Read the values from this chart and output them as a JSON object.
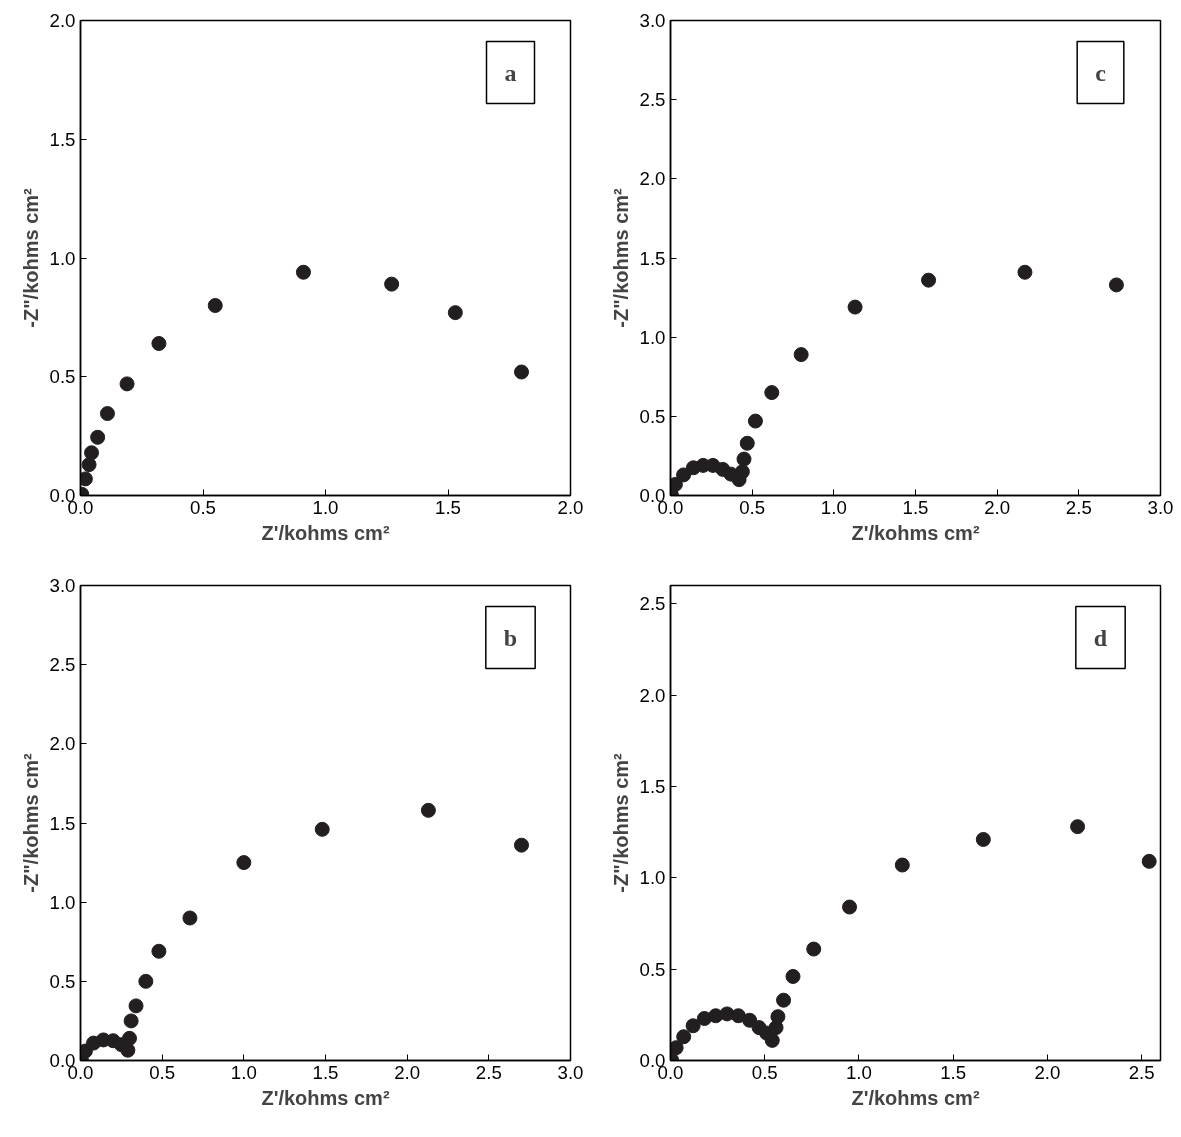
{
  "chart_data": [
    {
      "type": "scatter",
      "xlabel": "Z'/kohms cm²",
      "ylabel": "-Z\"/kohms cm²",
      "annotations": [
        "a"
      ],
      "marker": "circle",
      "grid": false,
      "xlim": [
        0,
        2.0
      ],
      "ylim": [
        0,
        2.0
      ],
      "xticks": [
        {
          "value": 0,
          "label": "0.0"
        },
        0.5,
        {
          "value": 1,
          "label": "1.0"
        },
        1.5,
        {
          "value": 2,
          "label": "2.0"
        }
      ],
      "yticks": [
        {
          "value": 0,
          "label": "0.0"
        },
        0.5,
        {
          "value": 1,
          "label": "1.0"
        },
        1.5,
        {
          "value": 2,
          "label": "2.0"
        }
      ],
      "series": [
        {
          "color": "#231f20",
          "x": [
            0.005,
            0.02,
            0.035,
            0.045,
            0.07,
            0.11,
            0.19,
            0.32,
            0.55,
            0.91,
            1.27,
            1.53,
            1.8
          ],
          "values": [
            0.005,
            0.07,
            0.13,
            0.18,
            0.245,
            0.345,
            0.47,
            0.64,
            0.8,
            0.94,
            0.89,
            0.77,
            0.52
          ]
        }
      ]
    },
    {
      "type": "scatter",
      "xlabel": "Z'/kohms cm²",
      "ylabel": "-Z\"/kohms cm²",
      "annotations": [
        "c"
      ],
      "marker": "circle",
      "grid": false,
      "xlim": [
        0,
        3.0
      ],
      "ylim": [
        0,
        3.0
      ],
      "xticks": [
        {
          "value": 0,
          "label": "0.0"
        },
        0.5,
        {
          "value": 1,
          "label": "1.0"
        },
        1.5,
        {
          "value": 2,
          "label": "2.0"
        },
        2.5,
        {
          "value": 3,
          "label": "3.0"
        }
      ],
      "yticks": [
        {
          "value": 0,
          "label": "0.0"
        },
        0.5,
        {
          "value": 1,
          "label": "1.0"
        },
        1.5,
        {
          "value": 2,
          "label": "2.0"
        },
        2.5,
        {
          "value": 3,
          "label": "3.0"
        }
      ],
      "series": [
        {
          "color": "#231f20",
          "x": [
            0.005,
            0.03,
            0.08,
            0.14,
            0.2,
            0.26,
            0.32,
            0.37,
            0.42,
            0.44,
            0.45,
            0.47,
            0.52,
            0.62,
            0.8,
            1.13,
            1.58,
            2.17,
            2.73
          ],
          "values": [
            0.005,
            0.07,
            0.13,
            0.175,
            0.19,
            0.19,
            0.165,
            0.135,
            0.1,
            0.15,
            0.23,
            0.33,
            0.47,
            0.65,
            0.89,
            1.19,
            1.36,
            1.41,
            1.33
          ]
        }
      ]
    },
    {
      "type": "scatter",
      "xlabel": "Z'/kohms cm²",
      "ylabel": "-Z\"/kohms cm²",
      "annotations": [
        "b"
      ],
      "marker": "circle",
      "grid": false,
      "xlim": [
        0,
        3.0
      ],
      "ylim": [
        0,
        3.0
      ],
      "xticks": [
        {
          "value": 0,
          "label": "0.0"
        },
        0.5,
        {
          "value": 1,
          "label": "1.0"
        },
        1.5,
        {
          "value": 2,
          "label": "2.0"
        },
        2.5,
        {
          "value": 3,
          "label": "3.0"
        }
      ],
      "yticks": [
        {
          "value": 0,
          "label": "0.0"
        },
        0.5,
        {
          "value": 1,
          "label": "1.0"
        },
        1.5,
        {
          "value": 2,
          "label": "2.0"
        },
        2.5,
        {
          "value": 3,
          "label": "3.0"
        }
      ],
      "series": [
        {
          "color": "#231f20",
          "x": [
            0.005,
            0.03,
            0.08,
            0.14,
            0.2,
            0.25,
            0.29,
            0.3,
            0.31,
            0.34,
            0.4,
            0.48,
            0.67,
            1.0,
            1.48,
            2.13,
            2.7
          ],
          "values": [
            0.005,
            0.06,
            0.11,
            0.13,
            0.125,
            0.1,
            0.065,
            0.14,
            0.25,
            0.345,
            0.5,
            0.69,
            0.9,
            1.25,
            1.46,
            1.58,
            1.36
          ]
        }
      ]
    },
    {
      "type": "scatter",
      "xlabel": "Z'/kohms cm²",
      "ylabel": "-Z\"/kohms cm²",
      "annotations": [
        "d"
      ],
      "marker": "circle",
      "grid": false,
      "xlim": [
        0,
        2.6
      ],
      "ylim": [
        0,
        2.6
      ],
      "xticks": [
        {
          "value": 0,
          "label": "0.0"
        },
        0.5,
        {
          "value": 1,
          "label": "1.0"
        },
        1.5,
        {
          "value": 2,
          "label": "2.0"
        },
        2.5
      ],
      "yticks": [
        {
          "value": 0,
          "label": "0.0"
        },
        0.5,
        {
          "value": 1,
          "label": "1.0"
        },
        1.5,
        {
          "value": 2,
          "label": "2.0"
        },
        2.5
      ],
      "series": [
        {
          "color": "#231f20",
          "x": [
            0.005,
            0.03,
            0.07,
            0.12,
            0.18,
            0.24,
            0.3,
            0.36,
            0.42,
            0.47,
            0.51,
            0.54,
            0.56,
            0.57,
            0.6,
            0.65,
            0.76,
            0.95,
            1.23,
            1.66,
            2.16,
            2.54
          ],
          "values": [
            0.005,
            0.07,
            0.13,
            0.19,
            0.23,
            0.245,
            0.255,
            0.245,
            0.22,
            0.18,
            0.15,
            0.11,
            0.18,
            0.24,
            0.33,
            0.46,
            0.61,
            0.84,
            1.07,
            1.21,
            1.28,
            1.09
          ]
        }
      ]
    }
  ]
}
